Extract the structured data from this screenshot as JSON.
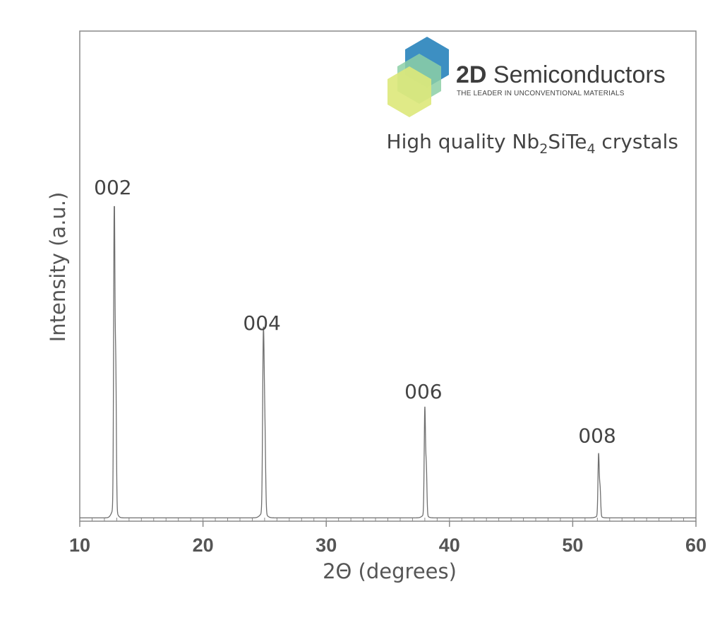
{
  "brand": {
    "name_bold": "2D",
    "name_rest": " Semiconductors",
    "tagline": "THE LEADER IN UNCONVENTIONAL MATERIALS",
    "logo_colors": [
      "#3d8fc2",
      "#8ccfa6",
      "#dde87a"
    ]
  },
  "chart_data": {
    "type": "line",
    "subtitle": {
      "prefix": "High quality Nb",
      "sub1": "2",
      "middle": "SiTe",
      "sub2": "4",
      "suffix": " crystals"
    },
    "xlabel": "2Θ (degrees)",
    "ylabel": "Intensity (a.u.)",
    "xlim": [
      10,
      60
    ],
    "ylim": [
      0,
      1
    ],
    "xticks": [
      10,
      20,
      30,
      40,
      50,
      60
    ],
    "grid": false,
    "line_color": "#6f6f6f",
    "peaks": [
      {
        "label": "002",
        "x": 12.8,
        "y": 0.99,
        "width": 0.05
      },
      {
        "label": "004",
        "x": 24.9,
        "y": 0.556,
        "width": 0.06
      },
      {
        "label": "006",
        "x": 38.0,
        "y": 0.337,
        "width": 0.05
      },
      {
        "label": "008",
        "x": 52.1,
        "y": 0.196,
        "width": 0.05
      }
    ]
  }
}
